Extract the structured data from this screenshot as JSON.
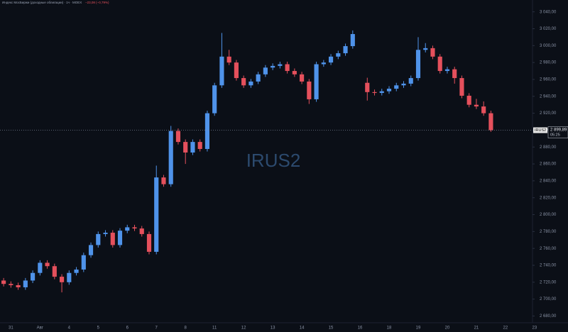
{
  "chart_data": {
    "type": "candlestick",
    "title": "Индекс МосБиржи (доходные облигации) · 1ч · MOEX",
    "change": "−23,08 (−0,79%)",
    "symbol": "IRUS2",
    "up_color": "#4f93ea",
    "down_color": "#e5505c",
    "categories": [
      null,
      "31",
      null,
      null,
      null,
      "Авг",
      null,
      null,
      null,
      "4",
      null,
      null,
      null,
      "5",
      null,
      null,
      null,
      "6",
      null,
      null,
      null,
      "7",
      null,
      null,
      null,
      "8",
      null,
      null,
      null,
      "11",
      null,
      null,
      null,
      "12",
      null,
      null,
      null,
      "13",
      null,
      null,
      null,
      "14",
      null,
      null,
      null,
      "15",
      null,
      null,
      null,
      "16",
      null,
      null,
      null,
      "18",
      null,
      null,
      null,
      "19",
      null,
      null,
      null,
      "20",
      null,
      null,
      null,
      "21",
      null,
      null,
      null,
      "22",
      null,
      null,
      null,
      "23"
    ],
    "open": [
      2722,
      2718,
      2716.5,
      2714,
      2722,
      2731,
      2743,
      2739,
      2726.5,
      2720,
      2731,
      2735,
      2752,
      2764,
      2777,
      2778.6,
      2764,
      2781,
      2785,
      2783.6,
      2777,
      2756,
      2844,
      2836,
      2899,
      2886,
      2873.5,
      2886,
      2877.7,
      2920,
      2953,
      2987,
      2980,
      2961.6,
      2953,
      2957.5,
      2966,
      2974,
      2976,
      2978,
      2970,
      2966,
      2957.5,
      2936.5,
      2978,
      2980,
      2987,
      2991,
      2999.4,
      null,
      2956,
      2945,
      2944,
      2946,
      2949,
      2953,
      2955,
      2961.6,
      2995,
      2997,
      2987,
      2970,
      2972,
      2961.6,
      2940.7,
      2930,
      2928,
      2920,
      null,
      null,
      null,
      null,
      null,
      null
    ],
    "high": [
      2725,
      2721,
      2719.5,
      2725,
      2734,
      2746,
      2746,
      2742,
      2729.5,
      2734,
      2738,
      2755,
      2767,
      2780,
      2781.6,
      2781.6,
      2784,
      2788,
      2788,
      2786.6,
      2780,
      2858,
      2847,
      2905,
      2902,
      2889,
      2889,
      2889,
      2923,
      2956,
      3015,
      2995,
      2983,
      2964.6,
      2960.5,
      2969,
      2977,
      2979,
      2981,
      2981,
      2973,
      2969,
      2960.5,
      2981,
      2983,
      2990,
      2994,
      3002.4,
      3018,
      null,
      2962,
      2948,
      2949,
      2952,
      2956,
      2958,
      2964.6,
      3010,
      3003,
      3000,
      2990,
      2975,
      2975,
      2964.6,
      2943.7,
      2937,
      2934,
      2923,
      null,
      null,
      null,
      null,
      null,
      null
    ],
    "low": [
      2715,
      2713.5,
      2711,
      2711,
      2719,
      2728,
      2736,
      2723.5,
      2708,
      2717,
      2728,
      2732,
      2749,
      2761,
      2774,
      2761,
      2761,
      2778,
      2780.6,
      2774,
      2753,
      2753,
      2833,
      2833,
      2883,
      2860,
      2870.5,
      2874.7,
      2874.7,
      2917,
      2950,
      2977,
      2958.6,
      2950,
      2950,
      2954.5,
      2963,
      2971,
      2973,
      2967,
      2963,
      2954.5,
      2931,
      2933.5,
      2975,
      2977,
      2984,
      2988,
      2996.4,
      null,
      2935,
      2941,
      2941,
      2943,
      2946,
      2950,
      2952,
      2958.6,
      2992,
      2984,
      2967,
      2967,
      2955,
      2937.7,
      2927,
      2925,
      2917,
      2898,
      null,
      null,
      null,
      null,
      null,
      null
    ],
    "close": [
      2718,
      2716.5,
      2714,
      2722,
      2731,
      2743,
      2739,
      2726.5,
      2720,
      2731,
      2735,
      2752,
      2764,
      2777,
      2778.6,
      2764,
      2781,
      2785,
      2783.6,
      2777,
      2756,
      2844,
      2836,
      2899,
      2886,
      2873.5,
      2886,
      2877.7,
      2920,
      2953,
      2987,
      2980,
      2961.6,
      2953,
      2957.5,
      2966,
      2974,
      2976,
      2978,
      2970,
      2966,
      2957.5,
      2936.5,
      2978,
      2980,
      2987,
      2991,
      2999.4,
      3013.7,
      null,
      2945,
      2944,
      2946,
      2949,
      2953,
      2955,
      2961.6,
      2995,
      2997,
      2987,
      2970,
      2972,
      2961.6,
      2940.7,
      2930,
      2928,
      2920,
      2900,
      null,
      null,
      null,
      null,
      null,
      null
    ],
    "last_price": {
      "value": 2899.89,
      "label": "2 899,89"
    },
    "countdown": "05:25",
    "ylim": [
      2672,
      3054
    ],
    "yticks": [
      {
        "value": 2680,
        "label": "2 680,00"
      },
      {
        "value": 2700,
        "label": "2 700,00"
      },
      {
        "value": 2720,
        "label": "2 720,00"
      },
      {
        "value": 2740,
        "label": "2 740,00"
      },
      {
        "value": 2760,
        "label": "2 760,00"
      },
      {
        "value": 2780,
        "label": "2 780,00"
      },
      {
        "value": 2800,
        "label": "2 800,00"
      },
      {
        "value": 2820,
        "label": "2 820,00"
      },
      {
        "value": 2840,
        "label": "2 840,00"
      },
      {
        "value": 2860,
        "label": "2 860,00"
      },
      {
        "value": 2880,
        "label": "2 880,00"
      },
      {
        "value": 2900,
        "label": "2 900,00"
      },
      {
        "value": 2920,
        "label": "2 920,00"
      },
      {
        "value": 2940,
        "label": "2 940,00"
      },
      {
        "value": 2960,
        "label": "2 960,00"
      },
      {
        "value": 2980,
        "label": "2 980,00"
      },
      {
        "value": 3000,
        "label": "3 000,00"
      },
      {
        "value": 3020,
        "label": "3 020,00"
      },
      {
        "value": 3040,
        "label": "3 040,00"
      }
    ],
    "grid": false
  }
}
